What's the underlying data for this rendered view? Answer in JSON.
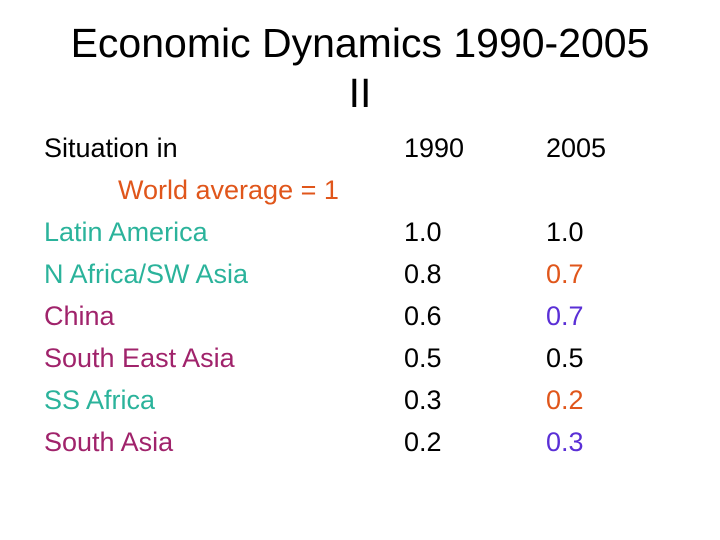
{
  "title": {
    "line1": "Economic Dynamics 1990-2005",
    "line2": "II"
  },
  "header": {
    "label": "Situation in",
    "col1": "1990",
    "col2": "2005"
  },
  "subheader": {
    "text": "World average = 1",
    "color": "#e0561b"
  },
  "colors": {
    "teal": "#2bb39b",
    "maroon": "#a0236b",
    "orange_red": "#e0561b",
    "violet": "#5a2fd6",
    "black": "#000000"
  },
  "rows": [
    {
      "region": "Latin America",
      "v1990": "1.0",
      "v2005": "1.0",
      "region_color": "#2bb39b",
      "v2005_color": "#000000"
    },
    {
      "region": "N Africa/SW Asia",
      "v1990": "0.8",
      "v2005": "0.7",
      "region_color": "#2bb39b",
      "v2005_color": "#e0561b"
    },
    {
      "region": "China",
      "v1990": "0.6",
      "v2005": "0.7",
      "region_color": "#a0236b",
      "v2005_color": "#5a2fd6"
    },
    {
      "region": "South East Asia",
      "v1990": "0.5",
      "v2005": "0.5",
      "region_color": "#a0236b",
      "v2005_color": "#000000"
    },
    {
      "region": "SS Africa",
      "v1990": "0.3",
      "v2005": "0.2",
      "region_color": "#2bb39b",
      "v2005_color": "#e0561b"
    },
    {
      "region": "South Asia",
      "v1990": "0.2",
      "v2005": "0.3",
      "region_color": "#a0236b",
      "v2005_color": "#5a2fd6"
    }
  ]
}
